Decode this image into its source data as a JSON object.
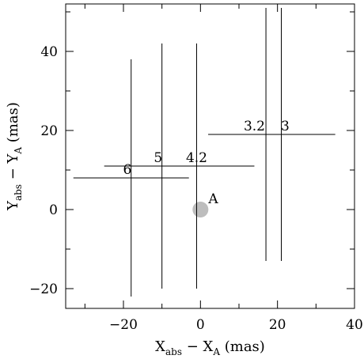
{
  "chart_data": {
    "type": "scatter",
    "title": "",
    "xlabel": {
      "main": "X",
      "sub1": "abs",
      "mid": " − X",
      "sub2": "A",
      "unit": " (mas)"
    },
    "ylabel": {
      "main": "Y",
      "sub1": "abs",
      "mid": " − Y",
      "sub2": "A",
      "unit": " (mas)"
    },
    "xlim": [
      -35,
      40
    ],
    "ylim": [
      -25,
      52
    ],
    "xticks": [
      -20,
      0,
      20,
      40
    ],
    "yticks": [
      -20,
      0,
      20,
      40
    ],
    "xtick_labels": [
      "−20",
      "0",
      "20",
      "40"
    ],
    "ytick_labels": [
      "−20",
      "0",
      "20",
      "40"
    ],
    "grid": false,
    "reference_point": {
      "label": "A",
      "x": 0,
      "y": 0,
      "color": "#bdbdbd"
    },
    "vertical_lines": [
      {
        "x": -18,
        "y_min": -22,
        "y_max": 38
      },
      {
        "x": -10,
        "y_min": -20,
        "y_max": 42
      },
      {
        "x": -1,
        "y_min": -20,
        "y_max": 42
      },
      {
        "x": 17,
        "y_min": -13,
        "y_max": 51
      },
      {
        "x": 21,
        "y_min": -13,
        "y_max": 51
      }
    ],
    "horizontal_lines": [
      {
        "y": 8,
        "x_min": -33,
        "x_max": -3
      },
      {
        "y": 11,
        "x_min": -25,
        "x_max": 14
      },
      {
        "y": 19,
        "x_min": 2,
        "x_max": 35
      }
    ],
    "labels": [
      {
        "text": "6",
        "x": -19,
        "y": 9
      },
      {
        "text": "5",
        "x": -11,
        "y": 12
      },
      {
        "text": "4.2",
        "x": -1,
        "y": 12
      },
      {
        "text": "3.2",
        "x": 14,
        "y": 20
      },
      {
        "text": "3",
        "x": 22,
        "y": 20
      }
    ]
  }
}
